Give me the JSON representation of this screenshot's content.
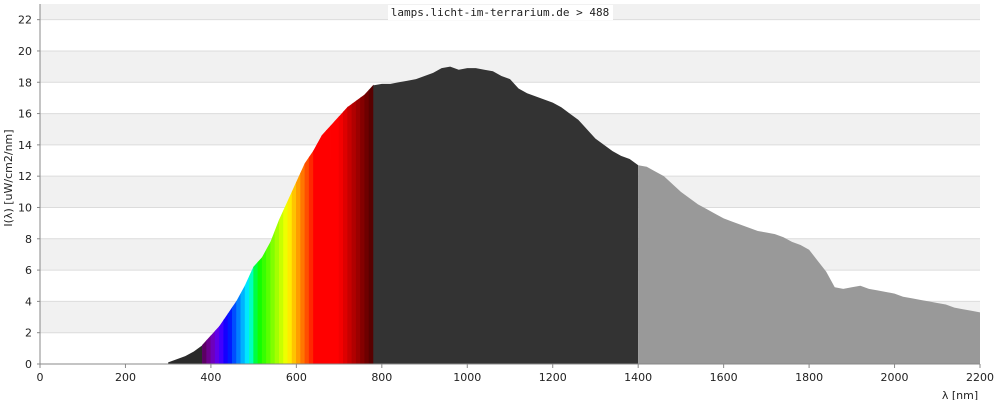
{
  "chart_data": {
    "type": "area",
    "title": "lamps.licht-im-terrarium.de > 488",
    "xlabel": "λ [nm]",
    "ylabel": "I(λ) [uW/cm2/nm]",
    "xlim": [
      0,
      2200
    ],
    "ylim": [
      0,
      23
    ],
    "x_ticks": [
      "0",
      "200",
      "400",
      "600",
      "800",
      "1000",
      "1200",
      "1400",
      "1600",
      "1800",
      "2000",
      "2200"
    ],
    "y_ticks": [
      "0",
      "2",
      "4",
      "6",
      "8",
      "10",
      "12",
      "14",
      "16",
      "18",
      "20",
      "22"
    ],
    "grid": "horizontal bands",
    "series": [
      {
        "x": [
          300,
          320,
          340,
          360,
          380,
          400,
          420,
          440,
          460,
          480,
          500,
          520,
          540,
          560,
          580,
          600,
          620,
          640,
          660,
          680,
          700,
          720,
          740,
          760,
          780,
          800,
          820,
          840,
          860,
          880,
          900,
          920,
          940,
          960,
          980,
          1000,
          1020,
          1040,
          1060,
          1080,
          1100,
          1120,
          1140,
          1160,
          1180,
          1200,
          1220,
          1240,
          1260,
          1280,
          1300,
          1320,
          1340,
          1360,
          1380,
          1400,
          1420,
          1440,
          1460,
          1480,
          1500,
          1520,
          1540,
          1560,
          1580,
          1600,
          1620,
          1640,
          1660,
          1680,
          1700,
          1720,
          1740,
          1760,
          1780,
          1800,
          1820,
          1840,
          1860,
          1880,
          1900,
          1920,
          1940,
          1960,
          1980,
          2000,
          2020,
          2040,
          2060,
          2080,
          2100,
          2120,
          2140,
          2160,
          2180,
          2200
        ],
        "values": [
          0.1,
          0.3,
          0.5,
          0.8,
          1.2,
          1.8,
          2.4,
          3.2,
          4.0,
          5.0,
          6.2,
          6.8,
          7.8,
          9.2,
          10.4,
          11.6,
          12.8,
          13.6,
          14.6,
          15.2,
          15.8,
          16.4,
          16.8,
          17.2,
          17.8,
          17.9,
          17.9,
          18.0,
          18.1,
          18.2,
          18.4,
          18.6,
          18.9,
          19.0,
          18.8,
          18.9,
          18.9,
          18.8,
          18.7,
          18.4,
          18.2,
          17.6,
          17.3,
          17.1,
          16.9,
          16.7,
          16.4,
          16.0,
          15.6,
          15.0,
          14.4,
          14.0,
          13.6,
          13.3,
          13.1,
          12.7,
          12.6,
          12.3,
          12.0,
          11.5,
          11.0,
          10.6,
          10.2,
          9.9,
          9.6,
          9.3,
          9.1,
          8.9,
          8.7,
          8.5,
          8.4,
          8.3,
          8.1,
          7.8,
          7.6,
          7.3,
          6.6,
          5.9,
          4.9,
          4.8,
          4.9,
          5.0,
          4.8,
          4.7,
          4.6,
          4.5,
          4.3,
          4.2,
          4.1,
          4.0,
          3.9,
          3.8,
          3.6,
          3.5,
          3.4,
          3.3
        ]
      }
    ],
    "regions": [
      {
        "from": 300,
        "to": 380,
        "color": "#2a2a2a"
      },
      {
        "from": 380,
        "to": 780,
        "color": "spectrum"
      },
      {
        "from": 780,
        "to": 1400,
        "color": "#333333"
      },
      {
        "from": 1400,
        "to": 2200,
        "color": "#999999"
      }
    ]
  }
}
